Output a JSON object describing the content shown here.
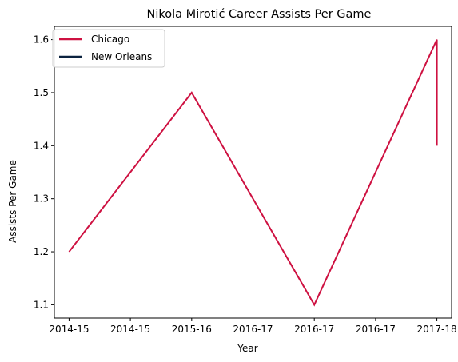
{
  "chart_data": {
    "type": "line",
    "title": "Nikola Mirotić Career Assists Per Game",
    "xlabel": "Year",
    "ylabel": "Assists Per Game",
    "x_tick_labels": [
      "2014-15",
      "2014-15",
      "2015-16",
      "2016-17",
      "2016-17",
      "2016-17",
      "2017-18"
    ],
    "y_ticks": [
      1.1,
      1.2,
      1.3,
      1.4,
      1.5,
      1.6
    ],
    "xlim": [
      -0.12,
      3.12
    ],
    "ylim": [
      1.075,
      1.625
    ],
    "grid": false,
    "legend_position": "upper-left",
    "series": [
      {
        "name": "Chicago",
        "color": "#CE1141",
        "x": [
          0,
          1,
          2,
          3,
          3
        ],
        "y": [
          1.2,
          1.5,
          1.1,
          1.6,
          1.4
        ]
      },
      {
        "name": "New Orleans",
        "color": "#0C2340",
        "x": [],
        "y": []
      }
    ]
  }
}
